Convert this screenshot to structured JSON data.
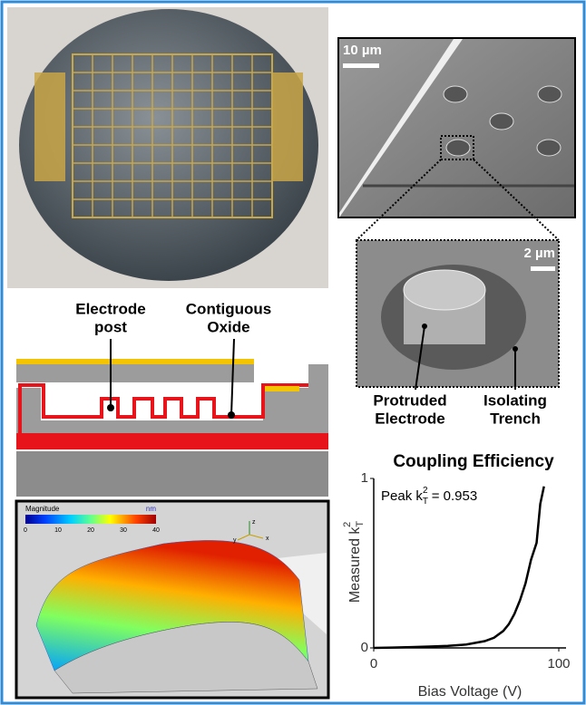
{
  "sem": {
    "scale_large": "10 µm",
    "scale_small": "2 µm",
    "label_left": [
      "Protruded",
      "Electrode"
    ],
    "label_right": [
      "Isolating",
      "Trench"
    ]
  },
  "cross_section": {
    "label_left": [
      "Electrode",
      "post"
    ],
    "label_right": [
      "Contiguous",
      "Oxide"
    ]
  },
  "surface_plot": {
    "colorbar_label": "Magnitude",
    "colorbar_unit": "nm",
    "colorbar_ticks": [
      0,
      10,
      20,
      30,
      40
    ],
    "colorbar_lim": [
      0,
      40
    ],
    "triad": [
      "z",
      "x",
      "y"
    ]
  },
  "chart_data": {
    "type": "line",
    "title": "Coupling Efficiency",
    "xlabel": "Bias Voltage (V)",
    "ylabel": {
      "text": "Measured k",
      "sub": "T",
      "sup": "2"
    },
    "annotation": {
      "text": "Peak k",
      "sub": "T",
      "sup": "2",
      "rest": " = 0.953"
    },
    "x": [
      0,
      10,
      20,
      30,
      40,
      50,
      55,
      60,
      65,
      70,
      73,
      76,
      79,
      82,
      85,
      88,
      90,
      92
    ],
    "values": [
      0,
      0.002,
      0.005,
      0.008,
      0.012,
      0.02,
      0.03,
      0.04,
      0.06,
      0.1,
      0.14,
      0.2,
      0.28,
      0.38,
      0.52,
      0.62,
      0.85,
      0.953
    ],
    "color": "#000000",
    "xlim": [
      0,
      100
    ],
    "ylim": [
      0,
      1
    ],
    "xticks": [
      0,
      100
    ],
    "yticks": [
      0,
      1
    ]
  }
}
